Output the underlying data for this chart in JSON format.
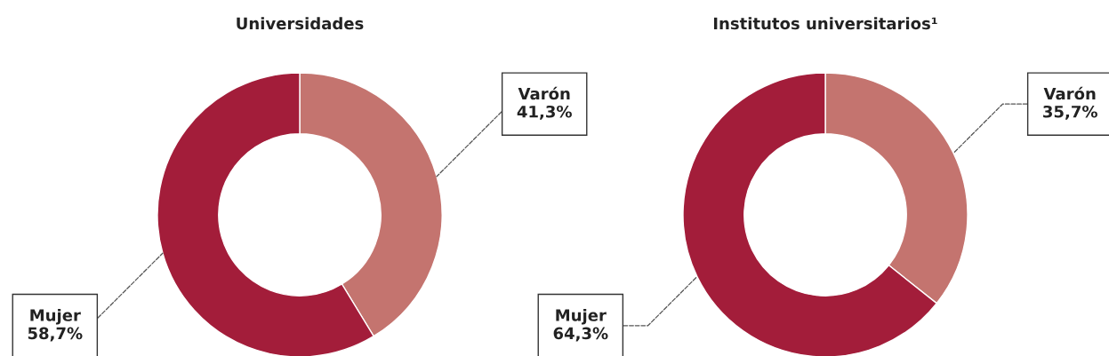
{
  "chart_data": [
    {
      "type": "donut",
      "title": "Universidades",
      "categories": [
        "Varón",
        "Mujer"
      ],
      "values": [
        41.3,
        58.7
      ],
      "value_labels": [
        "41,3%",
        "58,7%"
      ],
      "colors": [
        "#c4746f",
        "#a31d3a"
      ]
    },
    {
      "type": "donut",
      "title": "Institutos universitarios¹",
      "categories": [
        "Varón",
        "Mujer"
      ],
      "values": [
        35.7,
        64.3
      ],
      "value_labels": [
        "35,7%",
        "64,3%"
      ],
      "colors": [
        "#c4746f",
        "#a31d3a"
      ]
    }
  ]
}
